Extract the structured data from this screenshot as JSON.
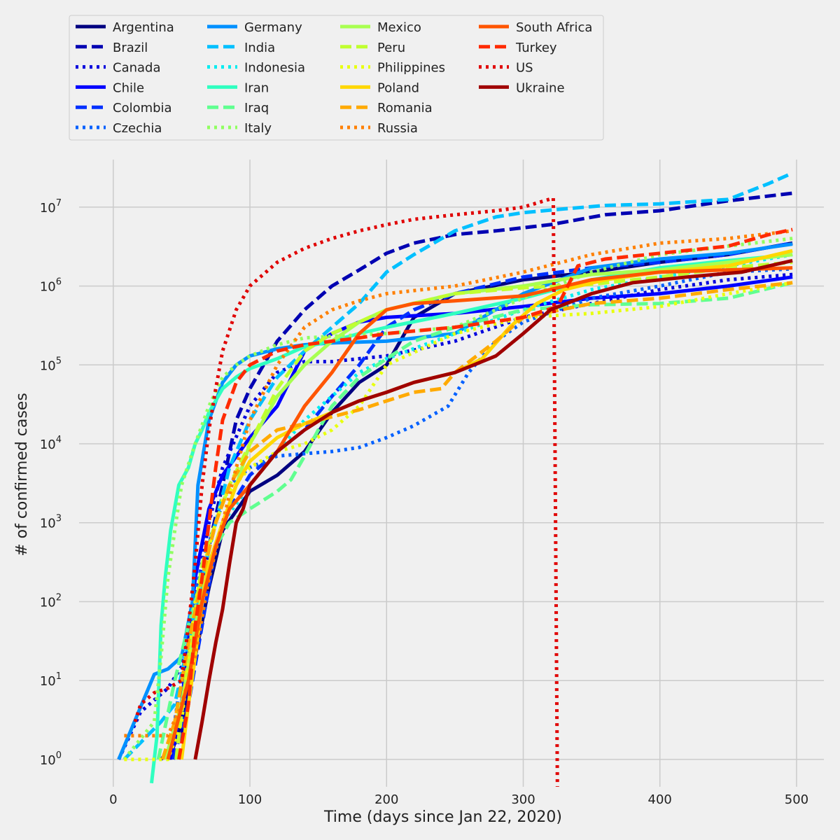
{
  "chart_data": {
    "type": "line",
    "title": "",
    "xlabel": "Time (days since Jan 22, 2020)",
    "ylabel": "# of confirmed cases",
    "xlim": [
      -25,
      520
    ],
    "ylim": [
      0.45,
      40000000
    ],
    "yscale": "log",
    "grid": true,
    "legend": "top-left, above plot",
    "x_ticks": [
      0,
      100,
      200,
      300,
      400,
      500
    ],
    "y_ticks": [
      {
        "value": 1,
        "label": "10^0"
      },
      {
        "value": 10,
        "label": "10^1"
      },
      {
        "value": 100,
        "label": "10^2"
      },
      {
        "value": 1000,
        "label": "10^3"
      },
      {
        "value": 10000,
        "label": "10^4"
      },
      {
        "value": 100000,
        "label": "10^5"
      },
      {
        "value": 1000000,
        "label": "10^6"
      },
      {
        "value": 10000000,
        "label": "10^7"
      }
    ],
    "series": [
      {
        "name": "Argentina",
        "color": "#000080",
        "style": "solid",
        "x": [
          41,
          50,
          60,
          70,
          80,
          100,
          120,
          140,
          160,
          180,
          200,
          210,
          220,
          250,
          300,
          350,
          400,
          450,
          497
        ],
        "y": [
          1,
          3,
          20,
          150,
          800,
          2500,
          4000,
          8000,
          25000,
          60000,
          100000,
          200000,
          400000,
          800000,
          1200000,
          1500000,
          2000000,
          2500000,
          3500000
        ]
      },
      {
        "name": "Brazil",
        "color": "#0000b2",
        "style": "dashed",
        "x": [
          35,
          50,
          60,
          70,
          80,
          90,
          100,
          120,
          140,
          160,
          180,
          200,
          220,
          250,
          280,
          320,
          360,
          400,
          450,
          497
        ],
        "y": [
          1,
          2,
          50,
          500,
          3000,
          20000,
          50000,
          200000,
          500000,
          1000000,
          1600000,
          2600000,
          3500000,
          4500000,
          5000000,
          6000000,
          8000000,
          9000000,
          12000000,
          15000000
        ]
      },
      {
        "name": "Canada",
        "color": "#0000dd",
        "style": "dotted",
        "x": [
          4,
          20,
          40,
          50,
          60,
          70,
          80,
          100,
          120,
          140,
          160,
          180,
          200,
          250,
          300,
          350,
          400,
          450,
          497
        ],
        "y": [
          1,
          4,
          8,
          15,
          100,
          1000,
          5000,
          30000,
          80000,
          110000,
          110000,
          120000,
          130000,
          200000,
          400000,
          600000,
          900000,
          1200000,
          1400000
        ]
      },
      {
        "name": "Chile",
        "color": "#0000ff",
        "style": "solid",
        "x": [
          42,
          50,
          60,
          70,
          80,
          100,
          120,
          140,
          160,
          180,
          200,
          250,
          300,
          350,
          400,
          450,
          497
        ],
        "y": [
          1,
          5,
          200,
          1500,
          4000,
          12000,
          30000,
          150000,
          250000,
          350000,
          400000,
          450000,
          550000,
          700000,
          800000,
          1000000,
          1300000
        ]
      },
      {
        "name": "Colombia",
        "color": "#0030ff",
        "style": "dashed",
        "x": [
          44,
          55,
          65,
          75,
          85,
          100,
          120,
          140,
          160,
          180,
          200,
          220,
          250,
          300,
          350,
          400,
          450,
          497
        ],
        "y": [
          1,
          5,
          50,
          500,
          1500,
          4000,
          8000,
          15000,
          40000,
          100000,
          300000,
          500000,
          800000,
          1300000,
          1700000,
          2000000,
          2500000,
          3500000
        ]
      },
      {
        "name": "Czechia",
        "color": "#0060ff",
        "style": "dotted",
        "x": [
          40,
          45,
          55,
          65,
          75,
          85,
          100,
          120,
          140,
          160,
          180,
          200,
          220,
          245,
          260,
          280,
          300,
          350,
          400,
          450,
          497
        ],
        "y": [
          1,
          3,
          50,
          300,
          1000,
          3000,
          5000,
          7000,
          7500,
          8000,
          9000,
          12000,
          17000,
          30000,
          80000,
          200000,
          350000,
          700000,
          1000000,
          1500000,
          1650000
        ]
      },
      {
        "name": "Germany",
        "color": "#0090ff",
        "style": "solid",
        "x": [
          4,
          30,
          40,
          50,
          58,
          62,
          70,
          80,
          90,
          100,
          120,
          140,
          160,
          200,
          250,
          300,
          350,
          400,
          450,
          497
        ],
        "y": [
          1,
          12,
          14,
          20,
          100,
          3000,
          20000,
          60000,
          100000,
          130000,
          160000,
          180000,
          190000,
          200000,
          250000,
          800000,
          1700000,
          2200000,
          2600000,
          3400000
        ]
      },
      {
        "name": "India",
        "color": "#00c0ff",
        "style": "dashed",
        "x": [
          8,
          35,
          45,
          55,
          65,
          75,
          85,
          100,
          120,
          140,
          160,
          180,
          200,
          220,
          250,
          280,
          300,
          330,
          360,
          400,
          450,
          480,
          497
        ],
        "y": [
          1,
          3,
          5,
          30,
          200,
          1000,
          5000,
          20000,
          70000,
          150000,
          300000,
          600000,
          1500000,
          2500000,
          5000000,
          7500000,
          8500000,
          9500000,
          10500000,
          11000000,
          12500000,
          20000000,
          27000000
        ]
      },
      {
        "name": "Indonesia",
        "color": "#00ecf0",
        "style": "dotted",
        "x": [
          40,
          50,
          60,
          70,
          80,
          100,
          120,
          140,
          160,
          180,
          200,
          250,
          300,
          350,
          400,
          450,
          497
        ],
        "y": [
          1,
          5,
          30,
          200,
          1000,
          3000,
          8000,
          20000,
          40000,
          80000,
          120000,
          250000,
          500000,
          900000,
          1300000,
          1800000,
          2500000
        ]
      },
      {
        "name": "Iran",
        "color": "#30ffc0",
        "style": "solid",
        "x": [
          28,
          32,
          35,
          38,
          42,
          48,
          55,
          60,
          65,
          70,
          80,
          90,
          100,
          120,
          140,
          160,
          180,
          200,
          250,
          300,
          350,
          400,
          450,
          497
        ],
        "y": [
          0.5,
          2,
          50,
          200,
          800,
          3000,
          5000,
          10000,
          15000,
          25000,
          50000,
          70000,
          90000,
          120000,
          170000,
          200000,
          250000,
          300000,
          450000,
          700000,
          1200000,
          1700000,
          2100000,
          2500000
        ]
      },
      {
        "name": "Iraq",
        "color": "#60ff90",
        "style": "dashed",
        "x": [
          33,
          45,
          55,
          65,
          75,
          85,
          100,
          120,
          130,
          140,
          150,
          160,
          180,
          200,
          220,
          250,
          300,
          350,
          400,
          450,
          497
        ],
        "y": [
          1,
          10,
          50,
          200,
          500,
          1000,
          1500,
          2500,
          3500,
          7000,
          15000,
          30000,
          70000,
          120000,
          200000,
          300000,
          500000,
          580000,
          600000,
          700000,
          1100000
        ]
      },
      {
        "name": "Italy",
        "color": "#90ff60",
        "style": "dotted",
        "x": [
          8,
          30,
          35,
          40,
          45,
          50,
          60,
          70,
          80,
          90,
          100,
          120,
          140,
          160,
          180,
          200,
          250,
          300,
          350,
          400,
          450,
          497
        ],
        "y": [
          1,
          3,
          20,
          200,
          800,
          3000,
          10000,
          30000,
          70000,
          100000,
          130000,
          180000,
          220000,
          230000,
          240000,
          250000,
          300000,
          700000,
          1500000,
          2500000,
          3200000,
          4000000
        ]
      },
      {
        "name": "Mexico",
        "color": "#a8ff50",
        "style": "solid",
        "x": [
          38,
          50,
          60,
          70,
          80,
          90,
          100,
          120,
          140,
          160,
          180,
          200,
          250,
          300,
          350,
          400,
          450,
          497
        ],
        "y": [
          1,
          5,
          50,
          300,
          1000,
          3000,
          10000,
          40000,
          100000,
          200000,
          350000,
          500000,
          800000,
          1000000,
          1400000,
          1600000,
          2000000,
          2500000
        ]
      },
      {
        "name": "Peru",
        "color": "#c0ff30",
        "style": "dashed",
        "x": [
          46,
          55,
          65,
          75,
          85,
          100,
          120,
          140,
          160,
          180,
          200,
          250,
          300,
          350,
          400,
          450,
          497
        ],
        "y": [
          1,
          20,
          300,
          1000,
          3000,
          10000,
          50000,
          150000,
          250000,
          350000,
          500000,
          800000,
          950000,
          1050000,
          1300000,
          1700000,
          2000000
        ]
      },
      {
        "name": "Philippines",
        "color": "#e8ff10",
        "style": "dotted",
        "x": [
          8,
          40,
          50,
          60,
          70,
          80,
          100,
          120,
          140,
          160,
          180,
          200,
          250,
          300,
          350,
          400,
          450,
          497
        ],
        "y": [
          1,
          1,
          3,
          100,
          500,
          2000,
          5000,
          8000,
          10000,
          15000,
          30000,
          100000,
          250000,
          400000,
          450000,
          550000,
          800000,
          1100000
        ]
      },
      {
        "name": "Poland",
        "color": "#ffd700",
        "style": "solid",
        "x": [
          50,
          55,
          60,
          65,
          70,
          80,
          90,
          100,
          120,
          140,
          160,
          180,
          200,
          220,
          250,
          270,
          290,
          310,
          330,
          360,
          400,
          450,
          497
        ],
        "y": [
          1,
          5,
          20,
          100,
          300,
          1000,
          3000,
          6000,
          12000,
          18000,
          25000,
          35000,
          45000,
          60000,
          80000,
          120000,
          300000,
          600000,
          900000,
          1200000,
          1500000,
          1800000,
          2800000
        ]
      },
      {
        "name": "Romania",
        "color": "#ffaa00",
        "style": "dashed",
        "x": [
          36,
          45,
          55,
          65,
          75,
          85,
          100,
          120,
          140,
          160,
          180,
          200,
          220,
          240,
          250,
          280,
          300,
          350,
          400,
          450,
          497
        ],
        "y": [
          1,
          3,
          30,
          200,
          1000,
          3000,
          8000,
          15000,
          18000,
          22000,
          27000,
          35000,
          45000,
          50000,
          80000,
          200000,
          400000,
          600000,
          700000,
          900000,
          1100000
        ]
      },
      {
        "name": "Russia",
        "color": "#ff8000",
        "style": "dotted",
        "x": [
          8,
          40,
          50,
          60,
          70,
          80,
          90,
          100,
          120,
          140,
          160,
          180,
          200,
          250,
          300,
          350,
          400,
          450,
          497
        ],
        "y": [
          2,
          2,
          5,
          20,
          200,
          1000,
          5000,
          20000,
          100000,
          300000,
          500000,
          650000,
          800000,
          1000000,
          1500000,
          2500000,
          3500000,
          4000000,
          5000000
        ]
      },
      {
        "name": "South Africa",
        "color": "#ff5500",
        "style": "solid",
        "x": [
          40,
          55,
          65,
          75,
          85,
          100,
          120,
          140,
          160,
          180,
          200,
          220,
          250,
          300,
          350,
          400,
          450,
          497
        ],
        "y": [
          1,
          10,
          100,
          500,
          1500,
          3000,
          8000,
          30000,
          80000,
          250000,
          500000,
          600000,
          650000,
          750000,
          1200000,
          1500000,
          1600000,
          1700000
        ]
      },
      {
        "name": "Turkey",
        "color": "#ff2a00",
        "style": "dashed",
        "x": [
          48,
          55,
          60,
          65,
          70,
          75,
          80,
          90,
          100,
          120,
          140,
          160,
          180,
          200,
          250,
          300,
          325,
          340,
          360,
          400,
          450,
          480,
          497
        ],
        "y": [
          1,
          5,
          50,
          200,
          1000,
          5000,
          20000,
          60000,
          100000,
          150000,
          180000,
          200000,
          220000,
          250000,
          300000,
          400000,
          550000,
          1800000,
          2200000,
          2600000,
          3200000,
          4500000,
          5200000
        ]
      },
      {
        "name": "US",
        "color": "#e00000",
        "style": "dotted",
        "x": [
          16,
          20,
          30,
          40,
          50,
          55,
          60,
          65,
          70,
          75,
          80,
          90,
          100,
          120,
          140,
          160,
          180,
          200,
          220,
          250,
          280,
          300,
          322,
          325,
          325
        ],
        "y": [
          3,
          5,
          7,
          8,
          10,
          50,
          300,
          3000,
          15000,
          50000,
          150000,
          500000,
          1000000,
          2000000,
          3000000,
          4000000,
          5000000,
          6000000,
          7000000,
          8000000,
          9000000,
          10000000,
          13000000,
          0.4,
          0.4
        ]
      },
      {
        "name": "Ukraine",
        "color": "#a00000",
        "style": "solid",
        "x": [
          60,
          65,
          70,
          75,
          80,
          85,
          90,
          95,
          100,
          120,
          140,
          160,
          180,
          200,
          220,
          250,
          280,
          300,
          320,
          350,
          380,
          420,
          460,
          497
        ],
        "y": [
          1,
          3,
          10,
          30,
          80,
          300,
          1000,
          1500,
          3000,
          8000,
          15000,
          25000,
          35000,
          45000,
          60000,
          80000,
          130000,
          250000,
          500000,
          800000,
          1100000,
          1300000,
          1500000,
          2100000
        ]
      }
    ]
  }
}
